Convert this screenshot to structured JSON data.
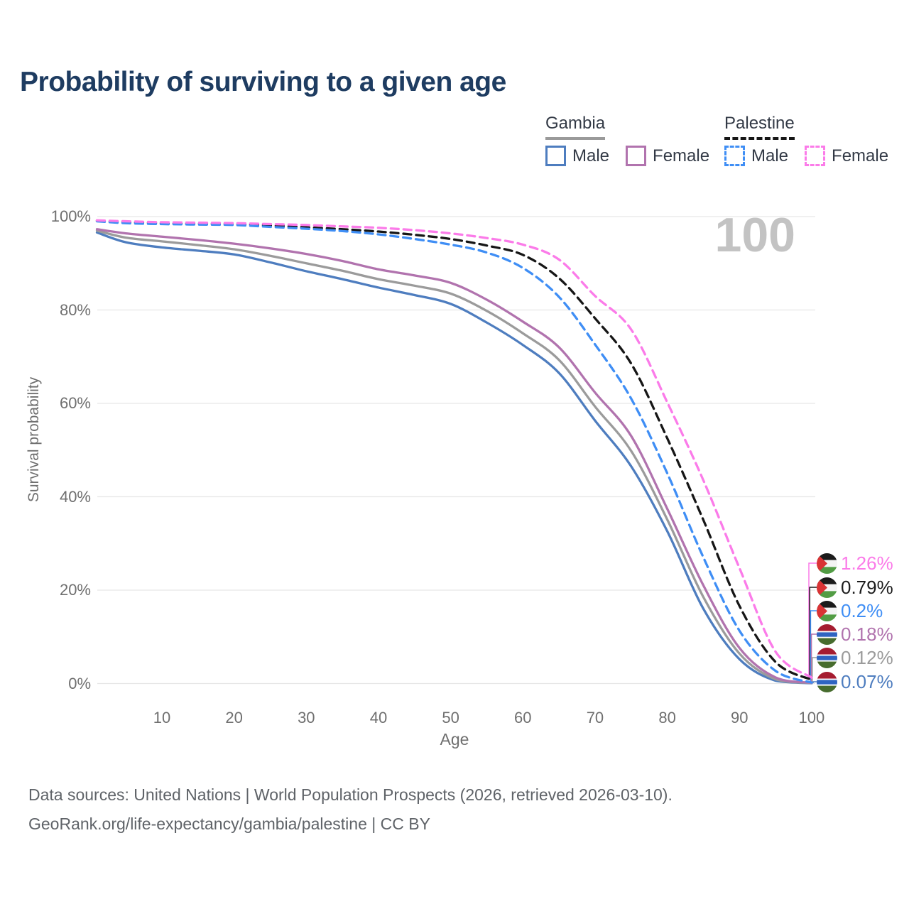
{
  "title": "Probability of surviving to a given age",
  "watermark": "100",
  "legend": {
    "position": "top-right",
    "groups": [
      {
        "name": "Gambia",
        "line_style": "solid",
        "underline_color": "#9a9a9a",
        "items": [
          {
            "label": "Male",
            "color": "#4e7dbf"
          },
          {
            "label": "Female",
            "color": "#b173ae"
          }
        ]
      },
      {
        "name": "Palestine",
        "line_style": "dashed",
        "underline_color": "#161616",
        "items": [
          {
            "label": "Male",
            "color": "#3f8ef5"
          },
          {
            "label": "Female",
            "color": "#fb7be9"
          }
        ]
      }
    ]
  },
  "chart_data": {
    "type": "line",
    "title": "Probability of surviving to a given age",
    "xlabel": "Age",
    "ylabel": "Survival probability",
    "xlim": [
      1,
      100
    ],
    "ylim": [
      0,
      100
    ],
    "grid": true,
    "x_ticks": [
      "10",
      "20",
      "30",
      "40",
      "50",
      "60",
      "70",
      "80",
      "90",
      "100"
    ],
    "y_ticks": [
      "100%",
      "80%",
      "60%",
      "40%",
      "20%",
      "0%"
    ],
    "x": [
      1,
      5,
      10,
      15,
      20,
      25,
      30,
      35,
      40,
      45,
      50,
      55,
      60,
      65,
      70,
      75,
      80,
      85,
      90,
      95,
      100
    ],
    "series": [
      {
        "name": "Gambia Male",
        "country": "Gambia",
        "sex": "Male",
        "color": "#4e7dbf",
        "dash": false,
        "values": [
          96.6,
          94.5,
          93.4,
          92.7,
          91.9,
          90.2,
          88.3,
          86.6,
          84.8,
          83.2,
          81.3,
          77.3,
          72.5,
          66.5,
          56.3,
          46.5,
          32.6,
          16.0,
          5.2,
          0.6,
          0.07
        ]
      },
      {
        "name": "Gambia Both sexes",
        "country": "Gambia",
        "sex": "Both",
        "color": "#9b9b9b",
        "dash": false,
        "values": [
          97.0,
          95.5,
          94.7,
          93.9,
          93.0,
          91.6,
          90.0,
          88.4,
          86.6,
          85.2,
          83.5,
          79.8,
          75.0,
          69.3,
          59.3,
          49.8,
          35.1,
          18.5,
          6.4,
          0.9,
          0.12
        ]
      },
      {
        "name": "Gambia Female",
        "country": "Gambia",
        "sex": "Female",
        "color": "#b173ae",
        "dash": false,
        "values": [
          97.3,
          96.4,
          95.7,
          95.0,
          94.2,
          93.2,
          92.0,
          90.5,
          88.7,
          87.4,
          85.8,
          82.2,
          77.5,
          72.0,
          62.3,
          53.0,
          37.4,
          21.0,
          7.6,
          1.3,
          0.18
        ]
      },
      {
        "name": "Palestine Both sexes",
        "country": "Palestine",
        "sex": "Both",
        "color": "#161616",
        "dash": true,
        "values": [
          99.1,
          98.8,
          98.6,
          98.5,
          98.4,
          98.1,
          97.7,
          97.3,
          96.8,
          96.1,
          95.2,
          93.8,
          91.8,
          86.8,
          78.2,
          68.5,
          52.5,
          35.0,
          16.6,
          4.6,
          0.79
        ]
      },
      {
        "name": "Palestine Male",
        "country": "Palestine",
        "sex": "Male",
        "color": "#3f8ef5",
        "dash": true,
        "values": [
          99.0,
          98.6,
          98.4,
          98.3,
          98.2,
          97.8,
          97.4,
          96.9,
          96.2,
          95.2,
          94.0,
          92.3,
          89.0,
          82.8,
          72.6,
          61.0,
          45.0,
          27.0,
          11.3,
          2.7,
          0.2
        ]
      },
      {
        "name": "Palestine Female",
        "country": "Palestine",
        "sex": "Female",
        "color": "#fb7be9",
        "dash": true,
        "values": [
          99.2,
          99.0,
          98.8,
          98.7,
          98.6,
          98.4,
          98.2,
          97.9,
          97.6,
          97.1,
          96.4,
          95.4,
          94.0,
          90.8,
          83.0,
          75.8,
          60.2,
          43.5,
          24.7,
          6.8,
          1.26
        ]
      }
    ],
    "end_labels": [
      {
        "text": "1.26%",
        "color": "#fb7be9",
        "flag": "palestine",
        "series": 5
      },
      {
        "text": "0.79%",
        "color": "#1c1c1c",
        "flag": "palestine",
        "series": 3
      },
      {
        "text": "0.2%",
        "color": "#3f8ef5",
        "flag": "palestine",
        "series": 4
      },
      {
        "text": "0.18%",
        "color": "#b173ae",
        "flag": "gambia",
        "series": 2
      },
      {
        "text": "0.12%",
        "color": "#9b9b9b",
        "flag": "gambia",
        "series": 1
      },
      {
        "text": "0.07%",
        "color": "#4e7dbf",
        "flag": "gambia",
        "series": 0
      }
    ]
  },
  "footer": {
    "line1": "Data sources: United Nations | World Population Prospects (2026, retrieved 2026-03-10).",
    "line2": "GeoRank.org/life-expectancy/gambia/palestine | CC BY"
  }
}
